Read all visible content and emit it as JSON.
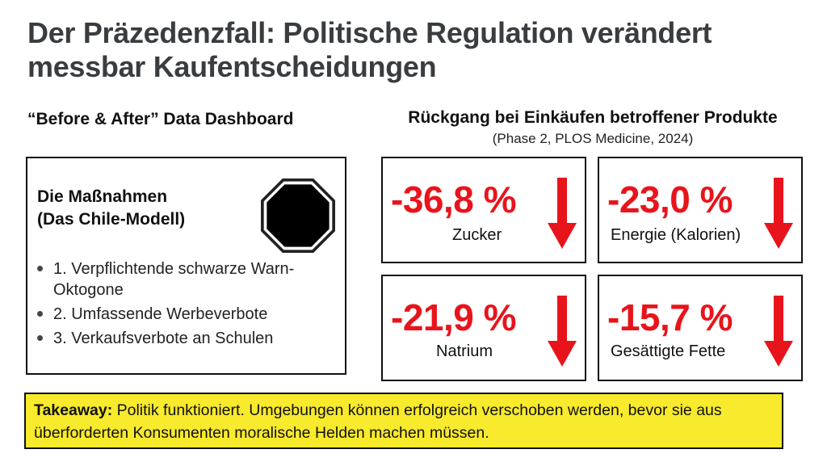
{
  "title": "Der Präzedenzfall: Politische Regulation verändert messbar Kaufentscheidungen",
  "left_heading": "“Before & After” Data Dashboard",
  "right_heading": "Rückgang bei Einkäufen betroffener Produkte",
  "right_subheading": "(Phase 2, PLOS Medicine, 2024)",
  "measures": {
    "title_line1": "Die Maßnahmen",
    "title_line2": "(Das Chile-Modell)",
    "icon": "black-octagon-warning-icon",
    "items": [
      "1. Verpflichtende schwarze Warn-Oktogone",
      "2. Umfassende Werbeverbote",
      "3. Verkaufsverbote an Schulen"
    ]
  },
  "stats": [
    {
      "value": "-36,8 %",
      "label": "Zucker"
    },
    {
      "value": "-23,0 %",
      "label": "Energie (Kalorien)"
    },
    {
      "value": "-21,9 %",
      "label": "Natrium"
    },
    {
      "value": "-15,7 %",
      "label": "Gesättigte Fette"
    }
  ],
  "colors": {
    "accent_red": "#e8141c",
    "highlight_yellow": "#f8ea2c",
    "title_gray": "#3a3d40"
  },
  "takeaway": {
    "label": "Takeaway:",
    "text": " Politik funktioniert. Umgebungen können erfolgreich verschoben werden, bevor sie aus überforderten Konsumenten moralische Helden machen müssen."
  }
}
